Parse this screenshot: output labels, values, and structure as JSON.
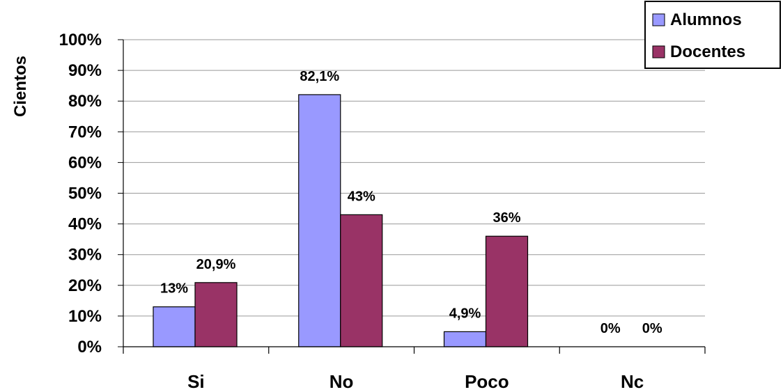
{
  "chart_data": {
    "type": "bar",
    "categories": [
      "Si",
      "No",
      "Poco",
      "Nc"
    ],
    "series": [
      {
        "name": "Alumnos",
        "values": [
          13,
          82.1,
          4.9,
          0
        ],
        "labels": [
          "13%",
          "82,1%",
          "4,9%",
          "0%"
        ],
        "color": "#9999ff"
      },
      {
        "name": "Docentes",
        "values": [
          20.9,
          43,
          36,
          0
        ],
        "labels": [
          "20,9%",
          "43%",
          "36%",
          "0%"
        ],
        "color": "#993366"
      }
    ],
    "ylabel": "Cientos",
    "ylim": [
      0,
      100
    ],
    "yticks": [
      "0%",
      "10%",
      "20%",
      "30%",
      "40%",
      "50%",
      "60%",
      "70%",
      "80%",
      "90%",
      "100%"
    ],
    "grid": true,
    "legend_position": "top-right"
  }
}
